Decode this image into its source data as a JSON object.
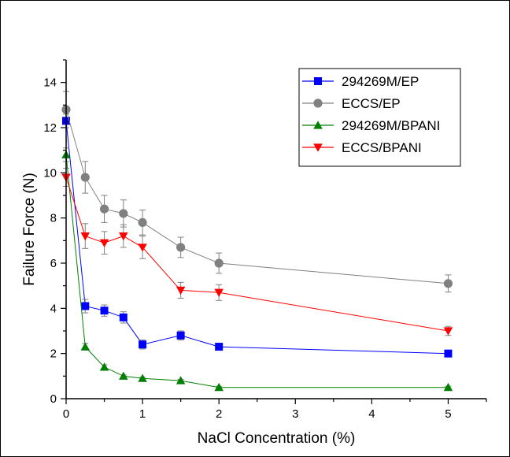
{
  "chart_data": {
    "type": "line",
    "xlabel": "NaCl Concentration (%)",
    "ylabel": "Failure Force (N)",
    "xlim": [
      0,
      5.5
    ],
    "ylim": [
      0,
      15
    ],
    "xticks": [
      0,
      1,
      2,
      3,
      4,
      5
    ],
    "yticks": [
      0,
      2,
      4,
      6,
      8,
      10,
      12,
      14
    ],
    "grid": false,
    "legend_position": "top-right",
    "series": [
      {
        "name": "294269M/EP",
        "color": "#0000ff",
        "marker": "square",
        "x": [
          0,
          0.25,
          0.5,
          0.75,
          1,
          1.5,
          2,
          5
        ],
        "y": [
          12.3,
          4.1,
          3.9,
          3.6,
          2.4,
          2.8,
          2.3,
          2.0
        ],
        "err": [
          0.3,
          0.3,
          0.25,
          0.25,
          0.2,
          0.2,
          0.15,
          0.1
        ]
      },
      {
        "name": "ECCS/EP",
        "color": "#808080",
        "marker": "circle",
        "x": [
          0,
          0.25,
          0.5,
          0.75,
          1,
          1.5,
          2,
          5
        ],
        "y": [
          12.8,
          9.8,
          8.4,
          8.2,
          7.8,
          6.7,
          6.0,
          5.1
        ],
        "err": [
          0.8,
          0.7,
          0.6,
          0.6,
          0.55,
          0.45,
          0.45,
          0.38
        ]
      },
      {
        "name": "294269M/BPANI",
        "color": "#008000",
        "marker": "triangle-up",
        "x": [
          0,
          0.25,
          0.5,
          0.75,
          1,
          1.5,
          2,
          5
        ],
        "y": [
          10.8,
          2.3,
          1.4,
          1.0,
          0.9,
          0.8,
          0.5,
          0.5
        ],
        "err": [
          0.3,
          0.15,
          0.1,
          0.05,
          0.05,
          0.05,
          0.05,
          0.05
        ]
      },
      {
        "name": "ECCS/BPANI",
        "color": "#ff0000",
        "marker": "triangle-down",
        "x": [
          0,
          0.25,
          0.5,
          0.75,
          1,
          1.5,
          2,
          5
        ],
        "y": [
          9.8,
          7.2,
          6.9,
          7.2,
          6.7,
          4.8,
          4.7,
          3.0
        ],
        "err": [
          0.4,
          0.55,
          0.5,
          0.5,
          0.5,
          0.35,
          0.35,
          0.2
        ]
      }
    ]
  }
}
